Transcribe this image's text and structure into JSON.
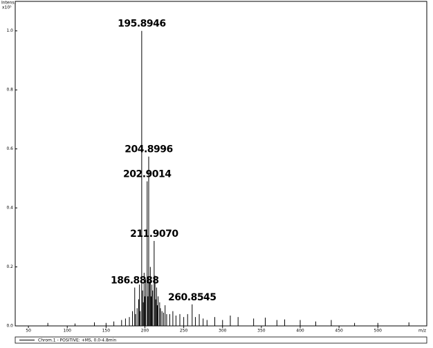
{
  "chart_data": {
    "type": "bar",
    "y_label": "Intens.",
    "y_unit": "x10⁵",
    "x_label": "m/z",
    "xlim": [
      33,
      563
    ],
    "ylim": [
      0,
      1.1
    ],
    "xticks": [
      50,
      100,
      150,
      200,
      250,
      300,
      350,
      400,
      450,
      500
    ],
    "yticks": [
      {
        "value": 0,
        "label": "0.0"
      },
      0.2,
      0.4,
      0.6,
      0.8,
      {
        "value": 1,
        "label": "1.0"
      }
    ],
    "x": [
      75,
      110,
      135,
      150,
      160,
      170,
      175,
      180,
      184,
      186.8888,
      188,
      190,
      192,
      193,
      194,
      195.8946,
      197,
      198,
      199,
      200,
      201,
      202.9014,
      203.9,
      204.8996,
      206,
      207,
      208,
      209,
      210,
      211.907,
      213,
      214,
      215,
      216,
      217,
      219,
      220,
      222,
      224,
      226,
      228,
      232,
      236,
      240,
      245,
      250,
      255,
      260.8545,
      265,
      270,
      275,
      280,
      290,
      300,
      310,
      320,
      340,
      355,
      370,
      380,
      400,
      420,
      440,
      470,
      500,
      540
    ],
    "series": [
      {
        "name": "Chrom.1 - POSITIVE: +MS, 0.0-4.8min",
        "color": "#000000",
        "values": [
          0.01,
          0.008,
          0.012,
          0.01,
          0.015,
          0.02,
          0.025,
          0.03,
          0.05,
          0.13,
          0.04,
          0.06,
          0.09,
          0.14,
          0.05,
          1.0,
          0.12,
          0.08,
          0.18,
          0.1,
          0.16,
          0.49,
          0.1,
          0.574,
          0.15,
          0.2,
          0.1,
          0.14,
          0.12,
          0.288,
          0.17,
          0.09,
          0.13,
          0.07,
          0.1,
          0.08,
          0.06,
          0.05,
          0.045,
          0.07,
          0.04,
          0.04,
          0.05,
          0.035,
          0.04,
          0.03,
          0.04,
          0.073,
          0.03,
          0.04,
          0.025,
          0.02,
          0.03,
          0.02,
          0.035,
          0.03,
          0.025,
          0.028,
          0.02,
          0.022,
          0.02,
          0.015,
          0.02,
          0.01,
          0.01,
          0.012
        ],
        "peak_labels": [
          null,
          null,
          null,
          null,
          null,
          null,
          null,
          null,
          null,
          "186.8888",
          null,
          null,
          null,
          null,
          null,
          "195.8946",
          null,
          null,
          null,
          null,
          null,
          "202.9014",
          null,
          "204.8996",
          null,
          null,
          null,
          null,
          null,
          "211.9070",
          null,
          null,
          null,
          null,
          null,
          null,
          null,
          null,
          null,
          null,
          null,
          null,
          null,
          null,
          null,
          null,
          null,
          "260.8545",
          null,
          null,
          null,
          null,
          null,
          null,
          null,
          null,
          null,
          null,
          null,
          null,
          null,
          null,
          null,
          null,
          null,
          null
        ]
      }
    ]
  }
}
